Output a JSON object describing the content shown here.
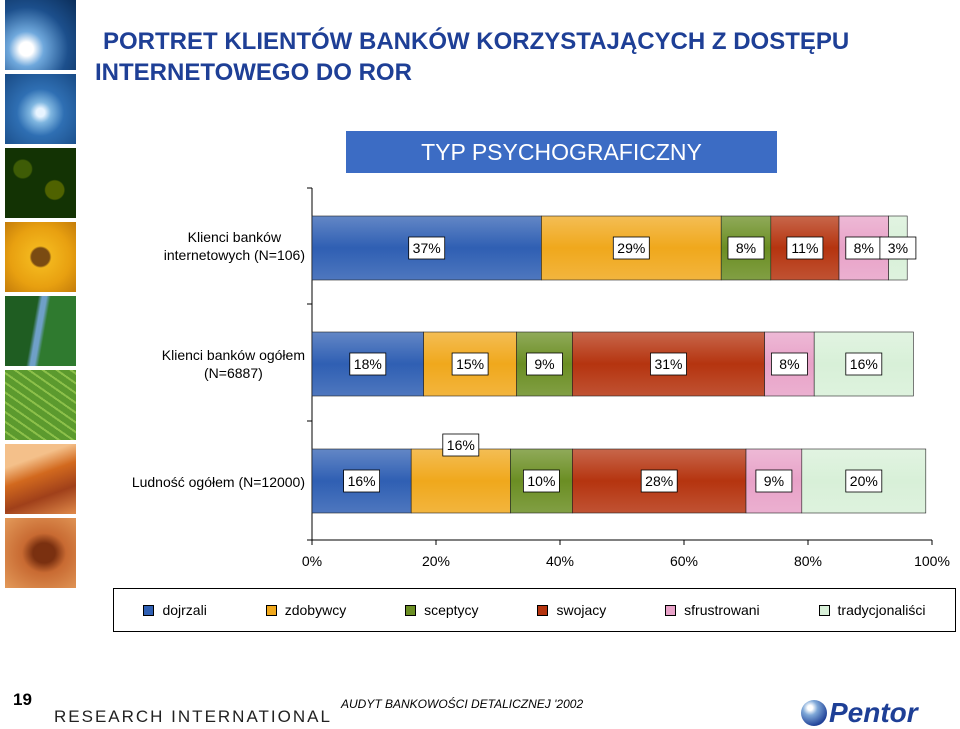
{
  "title_line1": "PORTRET KLIENTÓW BANKÓW KORZYSTAJĄCYCH Z DOSTĘPU",
  "title_line2": "INTERNETOWEGO DO ROR",
  "subtitle": "TYP PSYCHOGRAFICZNY",
  "footer": {
    "page_number": "19",
    "research_logo": "RESEARCH INTERNATIONAL",
    "audit_text": "AUDYT BANKOWOŚCI DETALICZNEJ '2002",
    "pentor_logo": "Pentor"
  },
  "colors": [
    "#2f5fb3",
    "#f0a81c",
    "#6b8e23",
    "#b5340f",
    "#e8a2c8",
    "#d8f0d8"
  ],
  "chart_data": {
    "type": "bar",
    "orientation": "horizontal",
    "stacked": true,
    "percent_stacked": true,
    "categories": [
      "Klienci banków internetowych (N=106)",
      "Klienci banków ogółem (N=6887)",
      "Ludność ogółem (N=12000)"
    ],
    "category_labels": [
      [
        "Klienci banków",
        "internetowych (N=106)"
      ],
      [
        "Klienci banków ogółem",
        "(N=6887)"
      ],
      [
        "Ludność ogółem (N=12000)"
      ]
    ],
    "series": [
      {
        "name": "dojrzali",
        "values": [
          37,
          18,
          16
        ]
      },
      {
        "name": "zdobywcy",
        "values": [
          29,
          15,
          16
        ]
      },
      {
        "name": "sceptycy",
        "values": [
          8,
          9,
          10
        ]
      },
      {
        "name": "swojacy",
        "values": [
          11,
          31,
          28
        ]
      },
      {
        "name": "sfrustrowani",
        "values": [
          8,
          8,
          9
        ]
      },
      {
        "name": "tradycjonaliści",
        "values": [
          3,
          16,
          20
        ]
      }
    ],
    "value_labels": [
      [
        "37%",
        "29%",
        "8%",
        "11%",
        "8%",
        "3%"
      ],
      [
        "18%",
        "15%",
        "9%",
        "31%",
        "8%",
        "16%"
      ],
      [
        "16%",
        "16%",
        "10%",
        "28%",
        "9%",
        "20%"
      ]
    ],
    "x_ticks": [
      "0%",
      "20%",
      "40%",
      "60%",
      "80%",
      "100%"
    ],
    "xlim": [
      0,
      100
    ],
    "legend_position": "bottom",
    "grid": false
  }
}
